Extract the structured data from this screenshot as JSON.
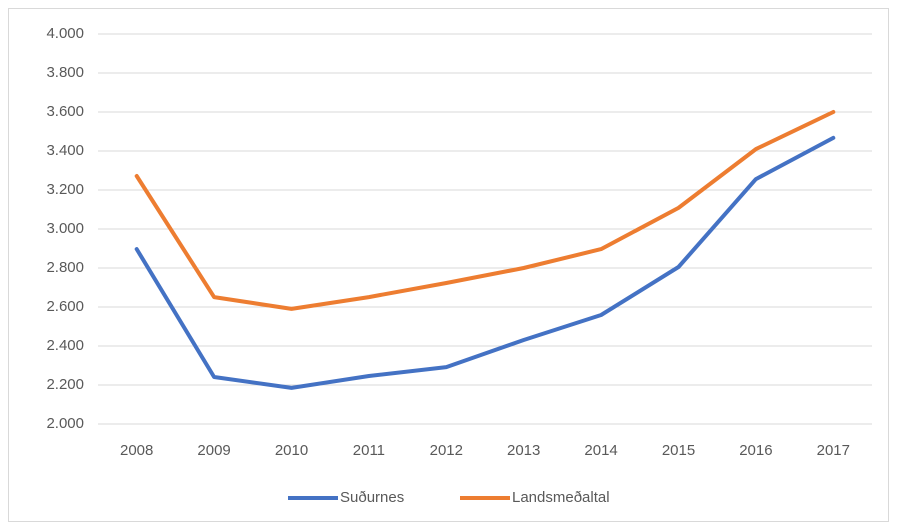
{
  "chart_data": {
    "type": "line",
    "categories": [
      "2008",
      "2009",
      "2010",
      "2011",
      "2012",
      "2013",
      "2014",
      "2015",
      "2016",
      "2017"
    ],
    "series": [
      {
        "name": "Suðurnes",
        "color": "#4472c4",
        "values": [
          2897,
          2241,
          2185,
          2246,
          2292,
          2431,
          2559,
          2805,
          3256,
          3467
        ]
      },
      {
        "name": "Landsmeðaltal",
        "color": "#ed7d31",
        "values": [
          3272,
          2651,
          2590,
          2651,
          2723,
          2800,
          2897,
          3108,
          3410,
          3600
        ]
      }
    ],
    "ylim": [
      2000,
      4000
    ],
    "yticks": [
      {
        "value": 2000,
        "label": "2.000"
      },
      {
        "value": 2200,
        "label": "2.200"
      },
      {
        "value": 2400,
        "label": "2.400"
      },
      {
        "value": 2600,
        "label": "2.600"
      },
      {
        "value": 2800,
        "label": "2.800"
      },
      {
        "value": 3000,
        "label": "3.000"
      },
      {
        "value": 3200,
        "label": "3.200"
      },
      {
        "value": 3400,
        "label": "3.400"
      },
      {
        "value": 3600,
        "label": "3.600"
      },
      {
        "value": 3800,
        "label": "3.800"
      },
      {
        "value": 4000,
        "label": "4.000"
      }
    ],
    "grid": true,
    "legend": "bottom"
  }
}
